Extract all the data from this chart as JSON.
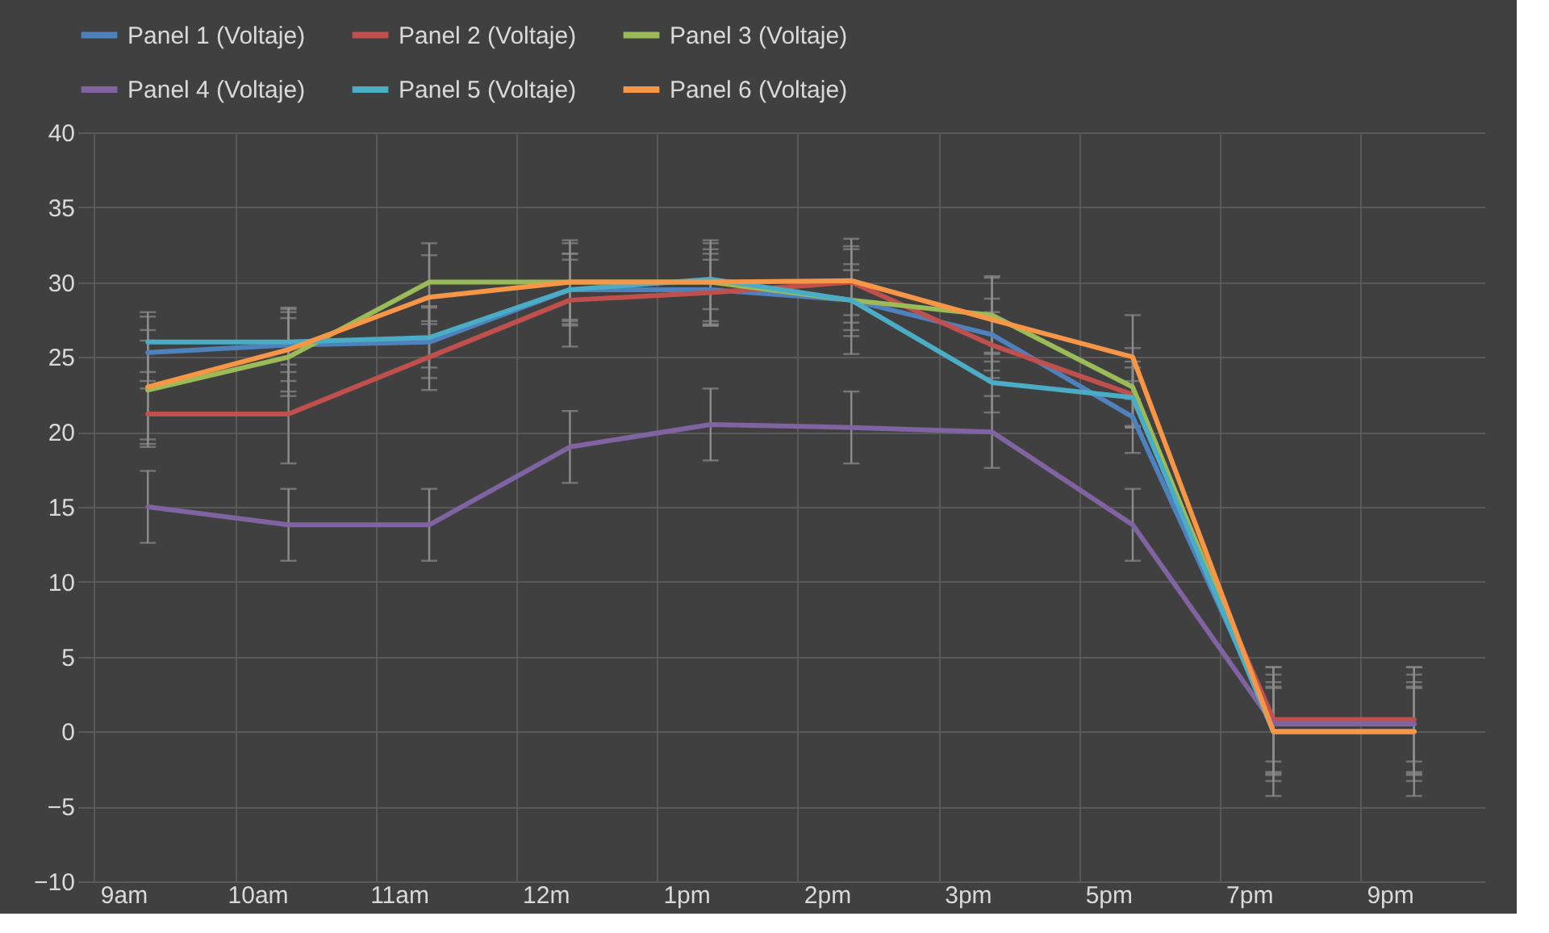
{
  "chart_data": {
    "type": "line",
    "categories": [
      "9am",
      "10am",
      "11am",
      "12m",
      "1pm",
      "2pm",
      "3pm",
      "5pm",
      "7pm",
      "9pm"
    ],
    "ylim": [
      -10,
      40
    ],
    "yticks": [
      -10,
      -5,
      0,
      5,
      10,
      15,
      20,
      25,
      30,
      35,
      40
    ],
    "grid": true,
    "legend": "top",
    "marker": "none",
    "line_style": "solid",
    "series": [
      {
        "name": "Panel 1 (Voltaje)",
        "color": "#4f81bd",
        "values": [
          25.3,
          25.8,
          26,
          29.5,
          29.5,
          28.8,
          26.5,
          21,
          0.5,
          0.5
        ],
        "errors": [
          2.4,
          2.4,
          2.4,
          2.4,
          2.4,
          2.4,
          2.4,
          2.4,
          3.3,
          3.3
        ]
      },
      {
        "name": "Panel 2 (Voltaje)",
        "color": "#c0504d",
        "values": [
          21.2,
          21.2,
          25,
          28.8,
          29.3,
          30,
          25.8,
          22.5,
          0.8,
          0.8
        ],
        "errors": [
          2.2,
          3.3,
          2.2,
          3.1,
          2.2,
          2.2,
          2.2,
          2.2,
          3.5,
          3.5
        ]
      },
      {
        "name": "Panel 3 (Voltaje)",
        "color": "#9bbb59",
        "values": [
          22.8,
          25,
          30,
          30,
          30,
          28.8,
          27.8,
          23,
          0,
          0
        ],
        "errors": [
          3.3,
          2.6,
          2.6,
          2.6,
          2.6,
          3.6,
          2.6,
          2.6,
          3.3,
          3.3
        ]
      },
      {
        "name": "Panel 4 (Voltaje)",
        "color": "#8064a2",
        "values": [
          15,
          13.8,
          13.8,
          19,
          20.5,
          20.3,
          20,
          13.8,
          0.5,
          0.5
        ],
        "errors": [
          2.4,
          2.4,
          2.4,
          2.4,
          2.4,
          2.4,
          2.4,
          2.4,
          2.5,
          2.5
        ]
      },
      {
        "name": "Panel 5 (Voltaje)",
        "color": "#4bacc6",
        "values": [
          26,
          26,
          26.3,
          29.5,
          30.2,
          28.8,
          23.3,
          22.3,
          0,
          0
        ],
        "errors": [
          2,
          2,
          2,
          2,
          2,
          2,
          2,
          2,
          4.3,
          4.3
        ]
      },
      {
        "name": "Panel 6 (Voltaje)",
        "color": "#f79646",
        "values": [
          23,
          25.5,
          29,
          30,
          30,
          30.1,
          27.5,
          25,
          0,
          0
        ],
        "errors": [
          3.8,
          2.8,
          2.8,
          2.8,
          2.8,
          2.8,
          2.8,
          2.8,
          2.9,
          2.9
        ]
      }
    ]
  }
}
